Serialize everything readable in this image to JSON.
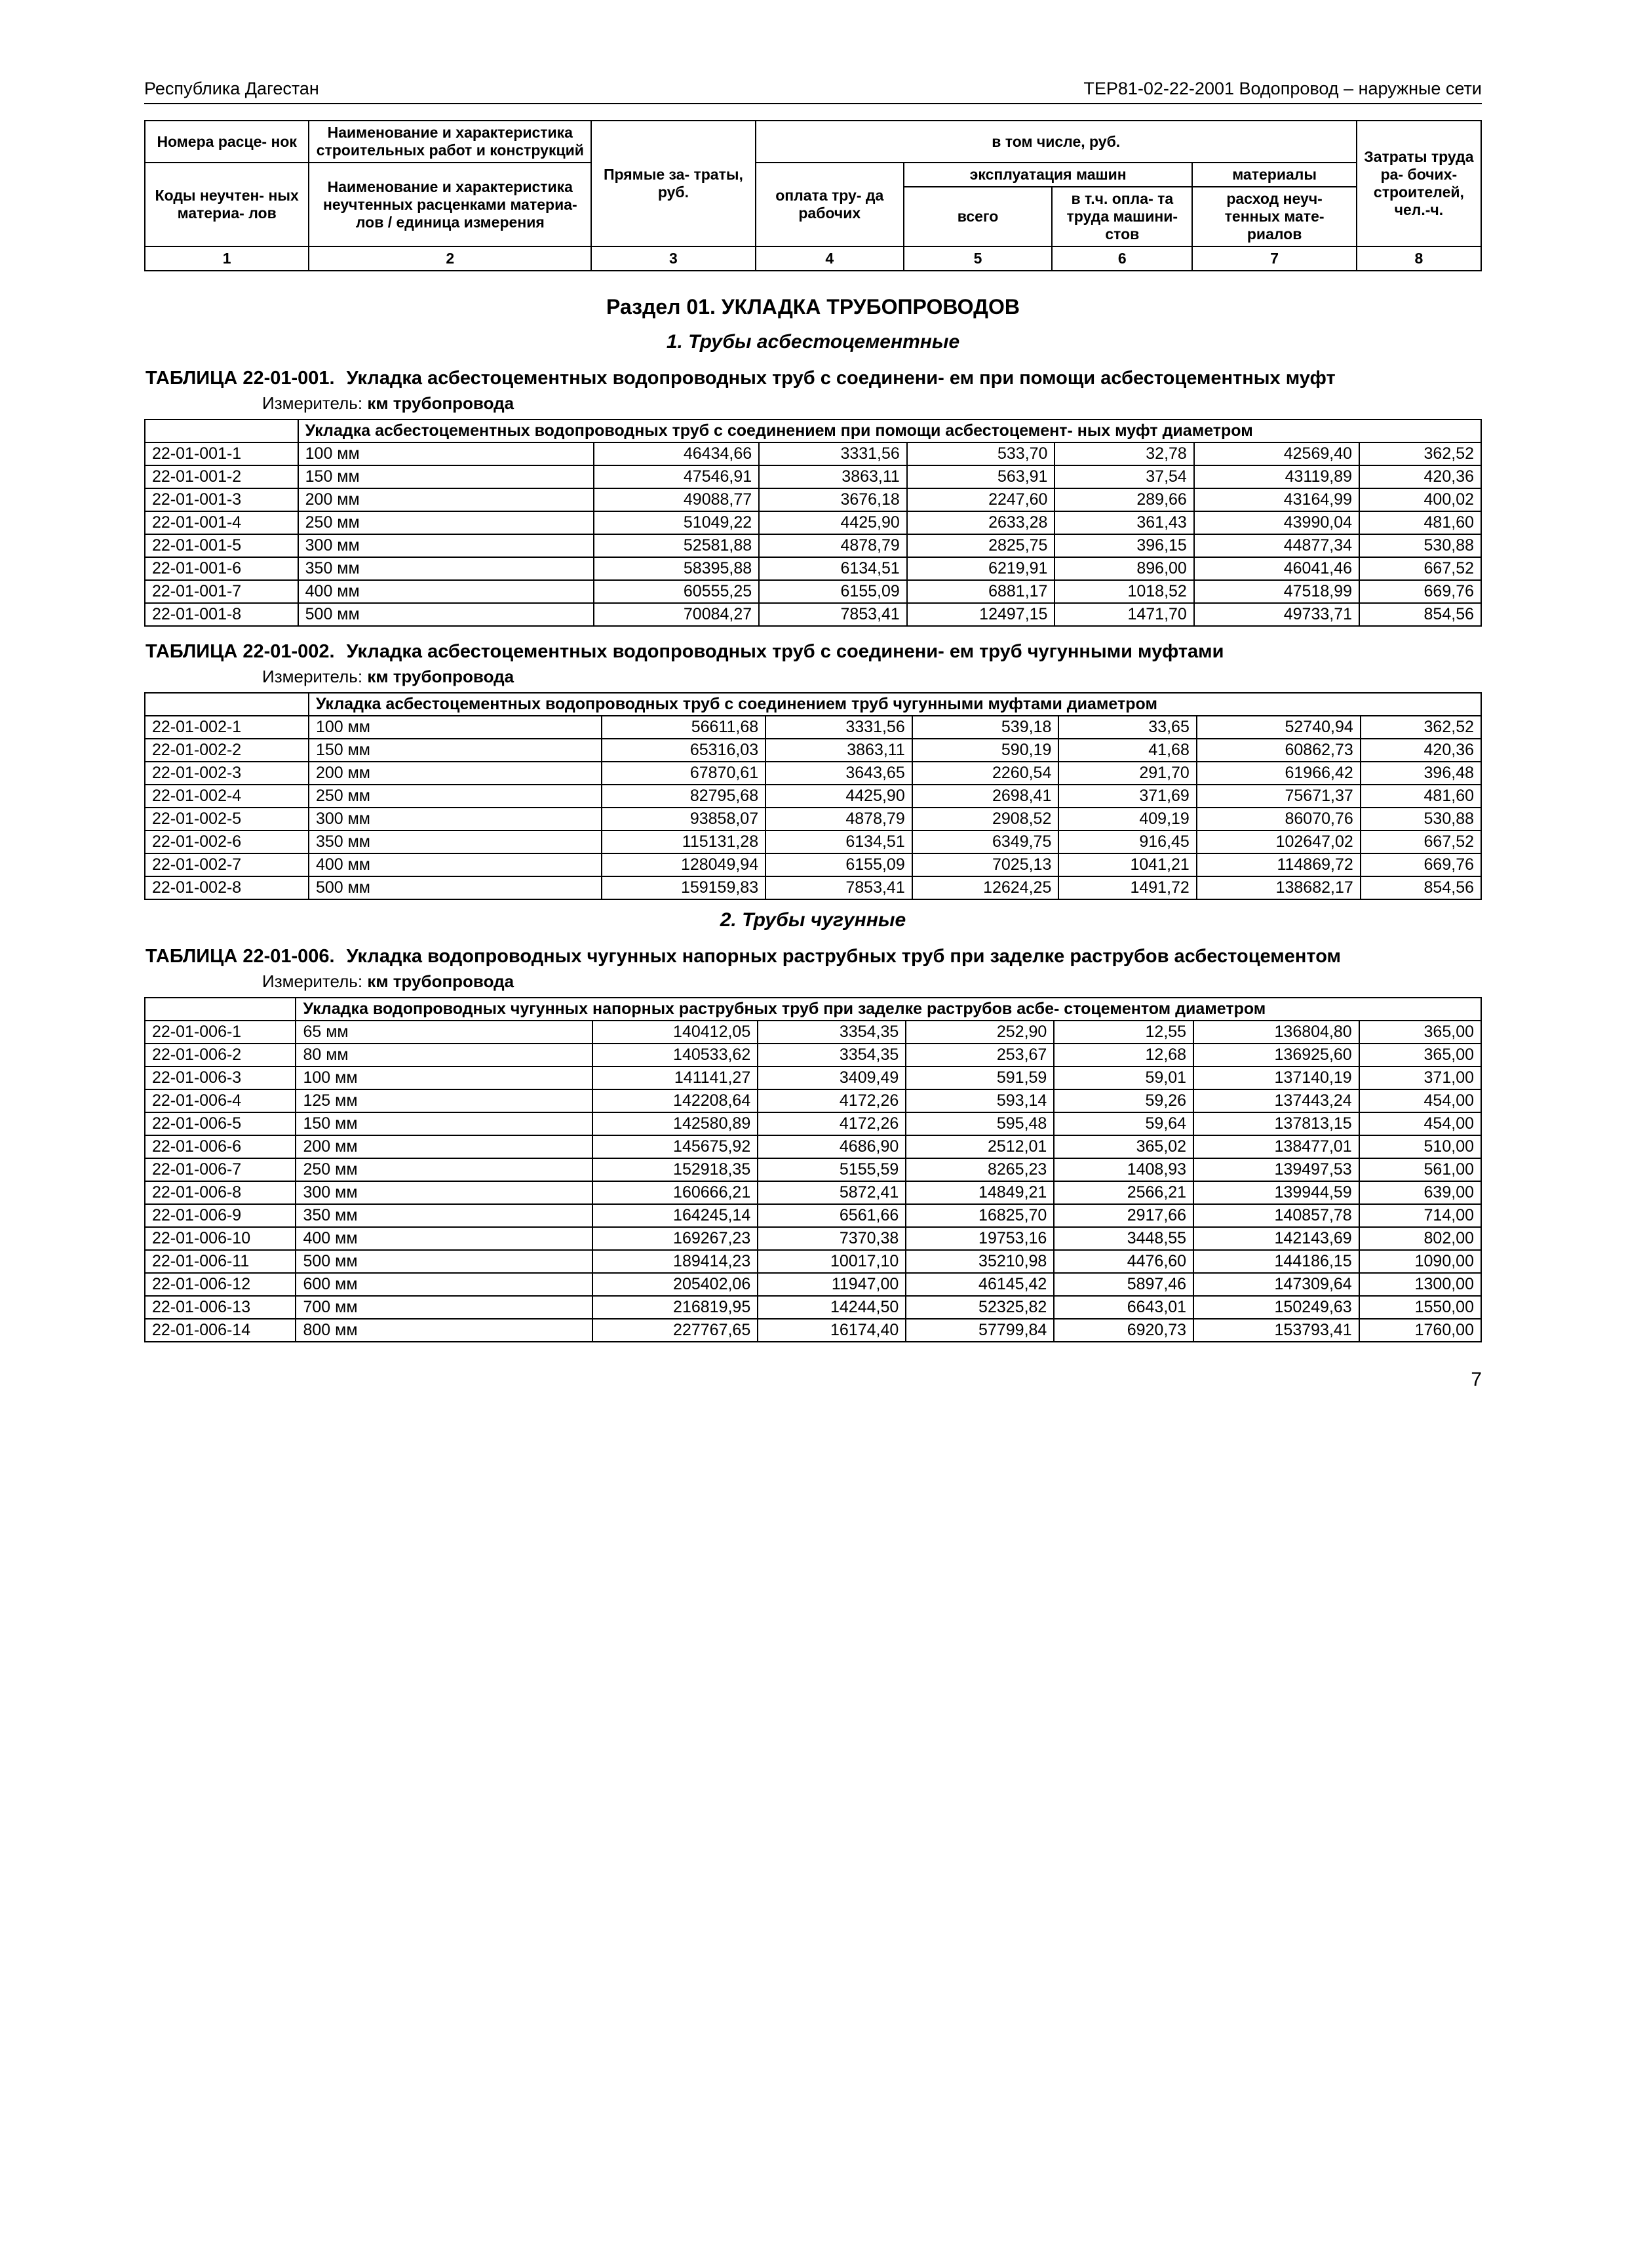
{
  "header": {
    "left": "Республика Дагестан",
    "right": "ТЕР81-02-22-2001  Водопровод – наружные сети"
  },
  "colHeader": {
    "r1c1": "Номера расце-\nнок",
    "r1c2": "Наименование и характеристика строительных работ и конструкций",
    "r1c3": "Прямые за-\nтраты, руб.",
    "r1c4": "в том числе, руб.",
    "r1c5": "Затраты труда ра-\nбочих-\nстроителей, чел.-ч.",
    "r2c1": "эксплуатация машин",
    "r2c2": "материалы",
    "r3c1": "Коды неучтен-\nных материа-\nлов",
    "r3c2": "Наименование и характеристика неучтенных расценками материа-\nлов / единица измерения",
    "r3c3": "оплата тру-\nда рабочих",
    "r3c4": "всего",
    "r3c5": "в т.ч. опла-\nта труда машини-\nстов",
    "r3c6": "расход неуч-\nтенных мате-\nриалов",
    "nums": [
      "1",
      "2",
      "3",
      "4",
      "5",
      "6",
      "7",
      "8"
    ]
  },
  "section": "Раздел 01. УКЛАДКА ТРУБОПРОВОДОВ",
  "sub1": "1. Трубы асбестоцементные",
  "sub2": "2. Трубы чугунные",
  "measureLabel": "Измеритель: ",
  "measureVal": "км трубопровода",
  "t1": {
    "label": "ТАБЛИЦА   22-01-001.",
    "title": "Укладка асбестоцементных водопроводных труб с соединени-\nем при помощи асбестоцементных муфт",
    "group": "Укладка асбестоцементных водопроводных труб с соединением при помощи асбестоцемент-\nных муфт диаметром",
    "rows": [
      [
        "22-01-001-1",
        "100 мм",
        "46434,66",
        "3331,56",
        "533,70",
        "32,78",
        "42569,40",
        "362,52"
      ],
      [
        "22-01-001-2",
        "150 мм",
        "47546,91",
        "3863,11",
        "563,91",
        "37,54",
        "43119,89",
        "420,36"
      ],
      [
        "22-01-001-3",
        "200 мм",
        "49088,77",
        "3676,18",
        "2247,60",
        "289,66",
        "43164,99",
        "400,02"
      ],
      [
        "22-01-001-4",
        "250 мм",
        "51049,22",
        "4425,90",
        "2633,28",
        "361,43",
        "43990,04",
        "481,60"
      ],
      [
        "22-01-001-5",
        "300 мм",
        "52581,88",
        "4878,79",
        "2825,75",
        "396,15",
        "44877,34",
        "530,88"
      ],
      [
        "22-01-001-6",
        "350 мм",
        "58395,88",
        "6134,51",
        "6219,91",
        "896,00",
        "46041,46",
        "667,52"
      ],
      [
        "22-01-001-7",
        "400 мм",
        "60555,25",
        "6155,09",
        "6881,17",
        "1018,52",
        "47518,99",
        "669,76"
      ],
      [
        "22-01-001-8",
        "500 мм",
        "70084,27",
        "7853,41",
        "12497,15",
        "1471,70",
        "49733,71",
        "854,56"
      ]
    ]
  },
  "t2": {
    "label": "ТАБЛИЦА   22-01-002.",
    "title": "Укладка асбестоцементных водопроводных труб с соединени-\nем труб чугунными муфтами",
    "group": "Укладка асбестоцементных водопроводных труб с соединением труб чугунными муфтами диаметром",
    "rows": [
      [
        "22-01-002-1",
        "100 мм",
        "56611,68",
        "3331,56",
        "539,18",
        "33,65",
        "52740,94",
        "362,52"
      ],
      [
        "22-01-002-2",
        "150 мм",
        "65316,03",
        "3863,11",
        "590,19",
        "41,68",
        "60862,73",
        "420,36"
      ],
      [
        "22-01-002-3",
        "200 мм",
        "67870,61",
        "3643,65",
        "2260,54",
        "291,70",
        "61966,42",
        "396,48"
      ],
      [
        "22-01-002-4",
        "250 мм",
        "82795,68",
        "4425,90",
        "2698,41",
        "371,69",
        "75671,37",
        "481,60"
      ],
      [
        "22-01-002-5",
        "300 мм",
        "93858,07",
        "4878,79",
        "2908,52",
        "409,19",
        "86070,76",
        "530,88"
      ],
      [
        "22-01-002-6",
        "350 мм",
        "115131,28",
        "6134,51",
        "6349,75",
        "916,45",
        "102647,02",
        "667,52"
      ],
      [
        "22-01-002-7",
        "400 мм",
        "128049,94",
        "6155,09",
        "7025,13",
        "1041,21",
        "114869,72",
        "669,76"
      ],
      [
        "22-01-002-8",
        "500 мм",
        "159159,83",
        "7853,41",
        "12624,25",
        "1491,72",
        "138682,17",
        "854,56"
      ]
    ]
  },
  "t3": {
    "label": "ТАБЛИЦА   22-01-006.",
    "title": "Укладка водопроводных чугунных напорных раструбных труб при заделке раструбов асбестоцементом",
    "group": "Укладка водопроводных чугунных напорных раструбных труб при заделке раструбов асбе-\nстоцементом диаметром",
    "rows": [
      [
        "22-01-006-1",
        "65 мм",
        "140412,05",
        "3354,35",
        "252,90",
        "12,55",
        "136804,80",
        "365,00"
      ],
      [
        "22-01-006-2",
        "80 мм",
        "140533,62",
        "3354,35",
        "253,67",
        "12,68",
        "136925,60",
        "365,00"
      ],
      [
        "22-01-006-3",
        "100 мм",
        "141141,27",
        "3409,49",
        "591,59",
        "59,01",
        "137140,19",
        "371,00"
      ],
      [
        "22-01-006-4",
        "125 мм",
        "142208,64",
        "4172,26",
        "593,14",
        "59,26",
        "137443,24",
        "454,00"
      ],
      [
        "22-01-006-5",
        "150 мм",
        "142580,89",
        "4172,26",
        "595,48",
        "59,64",
        "137813,15",
        "454,00"
      ],
      [
        "22-01-006-6",
        "200 мм",
        "145675,92",
        "4686,90",
        "2512,01",
        "365,02",
        "138477,01",
        "510,00"
      ],
      [
        "22-01-006-7",
        "250 мм",
        "152918,35",
        "5155,59",
        "8265,23",
        "1408,93",
        "139497,53",
        "561,00"
      ],
      [
        "22-01-006-8",
        "300 мм",
        "160666,21",
        "5872,41",
        "14849,21",
        "2566,21",
        "139944,59",
        "639,00"
      ],
      [
        "22-01-006-9",
        "350 мм",
        "164245,14",
        "6561,66",
        "16825,70",
        "2917,66",
        "140857,78",
        "714,00"
      ],
      [
        "22-01-006-10",
        "400 мм",
        "169267,23",
        "7370,38",
        "19753,16",
        "3448,55",
        "142143,69",
        "802,00"
      ],
      [
        "22-01-006-11",
        "500 мм",
        "189414,23",
        "10017,10",
        "35210,98",
        "4476,60",
        "144186,15",
        "1090,00"
      ],
      [
        "22-01-006-12",
        "600 мм",
        "205402,06",
        "11947,00",
        "46145,42",
        "5897,46",
        "147309,64",
        "1300,00"
      ],
      [
        "22-01-006-13",
        "700 мм",
        "216819,95",
        "14244,50",
        "52325,82",
        "6643,01",
        "150249,63",
        "1550,00"
      ],
      [
        "22-01-006-14",
        "800 мм",
        "227767,65",
        "16174,40",
        "57799,84",
        "6920,73",
        "153793,41",
        "1760,00"
      ]
    ]
  },
  "pageNumber": "7"
}
